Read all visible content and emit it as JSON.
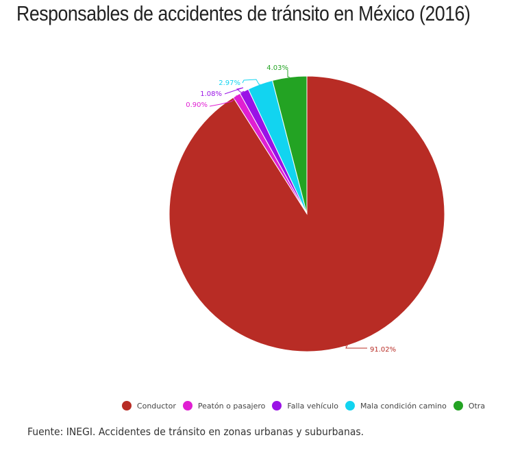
{
  "chart_data": {
    "type": "pie",
    "title": "Responsables de accidentes de tránsito en México (2016)",
    "slices": [
      {
        "name": "Conductor",
        "value": 91.02,
        "label": "91.02%",
        "color": "#b82c25"
      },
      {
        "name": "Peatón o pasajero",
        "value": 0.9,
        "label": "0.90%",
        "color": "#e01fd2"
      },
      {
        "name": "Falla vehículo",
        "value": 1.08,
        "label": "1.08%",
        "color": "#9a12e6"
      },
      {
        "name": "Mala condición camino",
        "value": 2.97,
        "label": "2.97%",
        "color": "#12d4f0"
      },
      {
        "name": "Otra",
        "value": 4.03,
        "label": "4.03%",
        "color": "#23a323"
      }
    ],
    "legend_position": "bottom"
  },
  "source": "Fuente: INEGI. Accidentes de tránsito en zonas urbanas y suburbanas."
}
